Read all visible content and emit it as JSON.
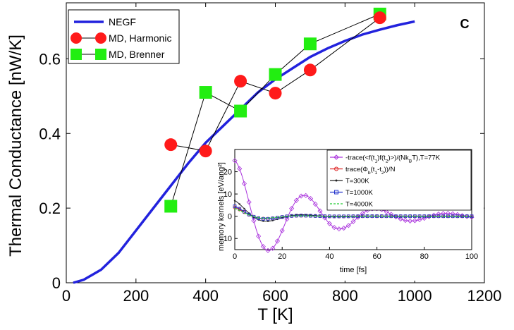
{
  "chart_data": [
    {
      "type": "line",
      "panel_label": "C",
      "xlabel": "T [K]",
      "ylabel": "Thermal Conductance [nW/K]",
      "xlim": [
        0,
        1200
      ],
      "ylim": [
        0,
        0.75
      ],
      "xticks": [
        "0",
        "200",
        "400",
        "600",
        "800",
        "1000",
        "1200"
      ],
      "yticks": [
        "0",
        "0.2",
        "0.4",
        "0.6"
      ],
      "xtick_values": [
        0,
        200,
        400,
        600,
        800,
        1000,
        1200
      ],
      "ytick_values": [
        0,
        0.2,
        0.4,
        0.6
      ],
      "legend_position": "top-left",
      "colors": {
        "negf": "#2222dd",
        "harmonic": "#ff1a1a",
        "brenner": "#22ee11"
      },
      "series": [
        {
          "name": "NEGF",
          "style": "line",
          "x": [
            20,
            50,
            100,
            150,
            200,
            250,
            300,
            350,
            400,
            450,
            500,
            550,
            600,
            650,
            700,
            750,
            800,
            850,
            900,
            950,
            1000
          ],
          "y": [
            0,
            0.008,
            0.035,
            0.08,
            0.14,
            0.2,
            0.26,
            0.32,
            0.375,
            0.42,
            0.465,
            0.51,
            0.545,
            0.575,
            0.605,
            0.628,
            0.648,
            0.665,
            0.678,
            0.69,
            0.7
          ]
        },
        {
          "name": "MD, Harmonic",
          "style": "circle-line",
          "x": [
            300,
            400,
            500,
            600,
            700,
            900
          ],
          "y": [
            0.37,
            0.353,
            0.54,
            0.508,
            0.57,
            0.71
          ]
        },
        {
          "name": "MD, Brenner",
          "style": "square-line",
          "x": [
            300,
            400,
            500,
            600,
            700,
            900
          ],
          "y": [
            0.205,
            0.51,
            0.46,
            0.558,
            0.64,
            0.72
          ]
        }
      ]
    },
    {
      "type": "line",
      "xlabel": "time [fs]",
      "ylabel": "memory kernels [eV/ang²]",
      "xlim": [
        0,
        100
      ],
      "ylim": [
        -15,
        30
      ],
      "xticks": [
        "0",
        "20",
        "40",
        "60",
        "80",
        "100"
      ],
      "yticks": [
        "-10",
        "0",
        "10",
        "20"
      ],
      "xtick_values": [
        0,
        20,
        40,
        60,
        80,
        100
      ],
      "ytick_values": [
        -10,
        0,
        10,
        20
      ],
      "legend_position": "top-right",
      "series": [
        {
          "name": "-trace(<f(t1)f(t2)>)/(NkBT),T=77K",
          "label_parts": [
            "-trace(<f(t",
            "1",
            ")f(t",
            "2",
            ")>)/(Nk",
            "B",
            "T),T=77K"
          ],
          "color": "#aa33dd",
          "marker": "diamond",
          "amp": 25,
          "omega": 0.2094,
          "decay": 0.033
        },
        {
          "name": "trace(Φb(t1-t2))/N",
          "label_parts": [
            "trace(Φ",
            "b",
            "(t",
            "1",
            "-t",
            "2",
            "))/N"
          ],
          "color": "#dd2222",
          "marker": "circle",
          "amp": 4,
          "omega": 0.2094,
          "decay": 0.09
        },
        {
          "name": "T=300K",
          "color": "#222222",
          "marker": "dot",
          "amp": 7,
          "omega": 0.2094,
          "decay": 0.08
        },
        {
          "name": "T=1000K",
          "color": "#2233cc",
          "marker": "square",
          "amp": 4.5,
          "omega": 0.2094,
          "decay": 0.095
        },
        {
          "name": "T=4000K",
          "color": "#22cc33",
          "marker": "none",
          "amp": 3.5,
          "omega": 0.2094,
          "decay": 0.1
        }
      ]
    }
  ]
}
